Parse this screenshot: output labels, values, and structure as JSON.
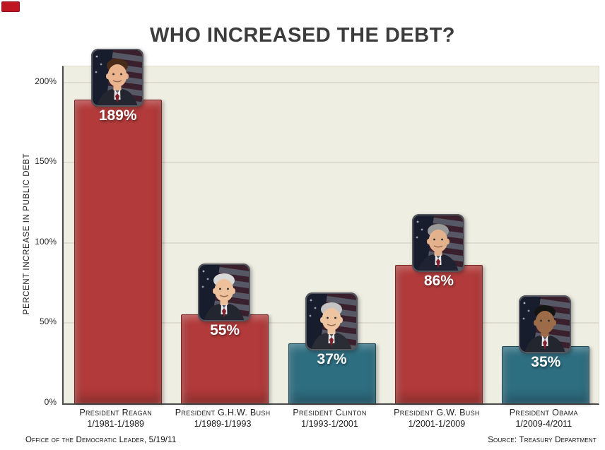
{
  "header": {
    "title": "WHO INCREASED THE DEBT?"
  },
  "corner_logo": {
    "color": "#c01622"
  },
  "footer": {
    "left": "Office of the Democratic Leader, 5/19/11",
    "right": "Source: Treasury Department"
  },
  "chart_data": {
    "type": "bar",
    "title": "WHO INCREASED THE DEBT?",
    "xlabel": "",
    "ylabel": "PERCENT INCREASE IN PUBLIC DEBT",
    "ylim": [
      0,
      210
    ],
    "grid": true,
    "legend": "none",
    "plot_background": "#efeee3",
    "yticks": [
      {
        "value": 0,
        "label": "0%"
      },
      {
        "value": 50,
        "label": "50%"
      },
      {
        "value": 100,
        "label": "100%"
      },
      {
        "value": 150,
        "label": "150%"
      },
      {
        "value": 200,
        "label": "200%"
      }
    ],
    "categories": [
      "President Reagan",
      "President G.H.W. Bush",
      "President Clinton",
      "President G.W. Bush",
      "President Obama"
    ],
    "values": [
      189,
      55,
      37,
      86,
      35
    ],
    "bars": [
      {
        "president": "President Reagan",
        "dates": "1/1981-1/1989",
        "value": 189,
        "value_label": "189%",
        "color": "#b23a3a",
        "border": "#7a2424",
        "portrait": {
          "name": "reagan-portrait",
          "skin": "#e9b48e",
          "hair": "#4a2c1a",
          "suit": "#23262e"
        }
      },
      {
        "president": "President G.H.W. Bush",
        "dates": "1/1989-1/1993",
        "value": 55,
        "value_label": "55%",
        "color": "#b23a3a",
        "border": "#7a2424",
        "portrait": {
          "name": "ghw-bush-portrait",
          "skin": "#edc19c",
          "hair": "#d8d8d8",
          "suit": "#23262e"
        }
      },
      {
        "president": "President Clinton",
        "dates": "1/1993-1/2001",
        "value": 37,
        "value_label": "37%",
        "color": "#2e6e81",
        "border": "#1c4a59",
        "portrait": {
          "name": "clinton-portrait",
          "skin": "#efc5a1",
          "hair": "#c4c4c4",
          "suit": "#2a2d36"
        }
      },
      {
        "president": "President G.W. Bush",
        "dates": "1/2001-1/2009",
        "value": 86,
        "value_label": "86%",
        "color": "#b23a3a",
        "border": "#7a2424",
        "portrait": {
          "name": "gw-bush-portrait",
          "skin": "#e3b28c",
          "hair": "#9a9a98",
          "suit": "#1f2230"
        }
      },
      {
        "president": "President Obama",
        "dates": "1/2009-4/2011",
        "value": 35,
        "value_label": "35%",
        "color": "#2e6e81",
        "border": "#1c4a59",
        "portrait": {
          "name": "obama-portrait",
          "skin": "#9c6b47",
          "hair": "#151515",
          "suit": "#23262e"
        }
      }
    ]
  }
}
